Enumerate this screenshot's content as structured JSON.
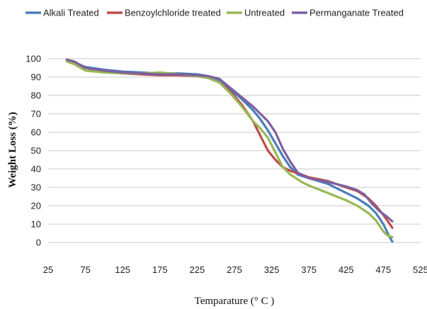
{
  "chart_data": {
    "type": "line",
    "title": "",
    "xlabel": "Temparature (° C )",
    "ylabel": "Weight Loss (%)",
    "xlim": [
      25,
      525
    ],
    "ylim": [
      0,
      100
    ],
    "x_ticks": [
      25,
      75,
      125,
      175,
      225,
      275,
      325,
      375,
      425,
      475,
      525
    ],
    "y_ticks": [
      0,
      10,
      20,
      30,
      40,
      50,
      60,
      70,
      80,
      90,
      100
    ],
    "grid": true,
    "legend_position": "top",
    "series": [
      {
        "name": "Alkali Treated",
        "color": "#4a7ebb",
        "points": [
          [
            50,
            99
          ],
          [
            60,
            98
          ],
          [
            75,
            95.5
          ],
          [
            100,
            94
          ],
          [
            125,
            93
          ],
          [
            150,
            92.5
          ],
          [
            175,
            92
          ],
          [
            200,
            92
          ],
          [
            225,
            91.5
          ],
          [
            240,
            90.5
          ],
          [
            255,
            88
          ],
          [
            270,
            83
          ],
          [
            285,
            78
          ],
          [
            300,
            72
          ],
          [
            310,
            67
          ],
          [
            320,
            61
          ],
          [
            330,
            54
          ],
          [
            340,
            47
          ],
          [
            350,
            41
          ],
          [
            360,
            37
          ],
          [
            375,
            35
          ],
          [
            400,
            32
          ],
          [
            425,
            27
          ],
          [
            440,
            24
          ],
          [
            455,
            20
          ],
          [
            465,
            16
          ],
          [
            475,
            10
          ],
          [
            482,
            4
          ],
          [
            487,
            0.5
          ]
        ]
      },
      {
        "name": "Benzoylchloride treated",
        "color": "#be4b48",
        "points": [
          [
            50,
            99
          ],
          [
            60,
            97.5
          ],
          [
            75,
            95
          ],
          [
            100,
            93
          ],
          [
            125,
            92
          ],
          [
            150,
            91.5
          ],
          [
            175,
            91
          ],
          [
            200,
            91
          ],
          [
            225,
            90.5
          ],
          [
            240,
            89.5
          ],
          [
            255,
            87
          ],
          [
            270,
            82
          ],
          [
            285,
            75
          ],
          [
            300,
            66
          ],
          [
            310,
            58
          ],
          [
            320,
            50
          ],
          [
            330,
            45
          ],
          [
            340,
            41
          ],
          [
            350,
            39
          ],
          [
            365,
            37
          ],
          [
            375,
            35.5
          ],
          [
            400,
            33.5
          ],
          [
            425,
            30
          ],
          [
            440,
            28
          ],
          [
            455,
            24
          ],
          [
            465,
            20
          ],
          [
            475,
            15
          ],
          [
            482,
            11
          ],
          [
            487,
            8
          ]
        ]
      },
      {
        "name": "Untreated",
        "color": "#98b954",
        "points": [
          [
            50,
            98.5
          ],
          [
            60,
            97
          ],
          [
            75,
            93.5
          ],
          [
            100,
            92.5
          ],
          [
            125,
            92
          ],
          [
            150,
            92
          ],
          [
            175,
            92.5
          ],
          [
            200,
            91.5
          ],
          [
            225,
            90.5
          ],
          [
            240,
            89.5
          ],
          [
            255,
            87
          ],
          [
            270,
            81
          ],
          [
            285,
            74
          ],
          [
            300,
            66
          ],
          [
            310,
            62
          ],
          [
            320,
            57
          ],
          [
            330,
            49
          ],
          [
            340,
            41
          ],
          [
            350,
            37
          ],
          [
            365,
            33
          ],
          [
            375,
            31
          ],
          [
            400,
            27
          ],
          [
            425,
            23
          ],
          [
            440,
            20
          ],
          [
            455,
            16
          ],
          [
            465,
            12
          ],
          [
            475,
            6
          ],
          [
            480,
            4
          ],
          [
            487,
            3
          ]
        ]
      },
      {
        "name": "Permanganate Treated",
        "color": "#7d60a0",
        "points": [
          [
            50,
            99.5
          ],
          [
            60,
            98.5
          ],
          [
            75,
            95
          ],
          [
            100,
            93.5
          ],
          [
            125,
            92.5
          ],
          [
            150,
            92
          ],
          [
            175,
            91.5
          ],
          [
            200,
            91.5
          ],
          [
            225,
            91
          ],
          [
            240,
            90.5
          ],
          [
            255,
            89
          ],
          [
            270,
            84
          ],
          [
            285,
            79
          ],
          [
            300,
            74
          ],
          [
            310,
            70
          ],
          [
            320,
            66
          ],
          [
            330,
            60
          ],
          [
            340,
            51
          ],
          [
            350,
            44
          ],
          [
            360,
            38
          ],
          [
            375,
            35
          ],
          [
            400,
            33
          ],
          [
            425,
            30.5
          ],
          [
            440,
            28.5
          ],
          [
            450,
            26
          ],
          [
            460,
            21
          ],
          [
            470,
            17
          ],
          [
            480,
            14
          ],
          [
            487,
            11.5
          ]
        ]
      }
    ]
  }
}
